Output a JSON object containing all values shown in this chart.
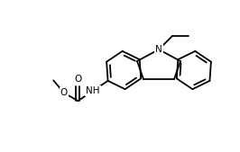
{
  "bg_color": "#ffffff",
  "line_color": "#000000",
  "lw": 1.3,
  "fs": 7.5,
  "N9": [
    176,
    55
  ],
  "C9a": [
    152,
    68
  ],
  "C8a": [
    200,
    68
  ],
  "C4b": [
    159,
    88
  ],
  "C4a": [
    193,
    88
  ],
  "left_ring_extends": "left",
  "right_ring_extends": "right"
}
